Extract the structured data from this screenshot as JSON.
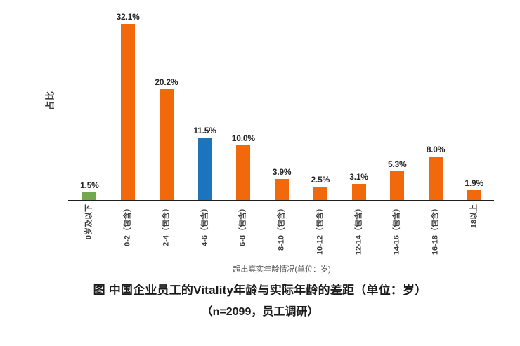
{
  "chart_data": {
    "type": "bar",
    "title": "图 中国企业员工的Vitality年龄与实际年龄的差距（单位：岁）",
    "subtitle": "（n=2099，员工调研）",
    "xlabel": "超出真实年龄情况(单位：岁)",
    "ylabel": "占比",
    "categories": [
      "0岁及以下",
      "0-2（包含）",
      "2-4（包含）",
      "4-6（包含）",
      "6-8（包含）",
      "8-10（包含）",
      "10-12（包含）",
      "12-14（包含）",
      "14-16（包含）",
      "16-18（包含）",
      "18以上"
    ],
    "values": [
      1.5,
      32.1,
      20.2,
      11.5,
      10.0,
      3.9,
      2.5,
      3.1,
      5.3,
      8.0,
      1.9
    ],
    "value_labels": [
      "1.5%",
      "32.1%",
      "20.2%",
      "11.5%",
      "10.0%",
      "3.9%",
      "2.5%",
      "3.1%",
      "5.3%",
      "8.0%",
      "1.9%"
    ],
    "point_colors": [
      "#72A94E",
      "#F2690C",
      "#F2690C",
      "#1B74BC",
      "#F2690C",
      "#F2690C",
      "#F2690C",
      "#F2690C",
      "#F2690C",
      "#F2690C",
      "#F2690C"
    ],
    "ylim": [
      0,
      35
    ],
    "grid": false,
    "legend": "none",
    "value_labels_shown": true,
    "axis_ticks_shown": false
  },
  "colors": {
    "orange": "#F2690C",
    "blue": "#1B74BC",
    "green": "#72A94E",
    "axis_line": "#1F1F1F",
    "text_dark": "#262626",
    "background": "#FFFFFF"
  }
}
